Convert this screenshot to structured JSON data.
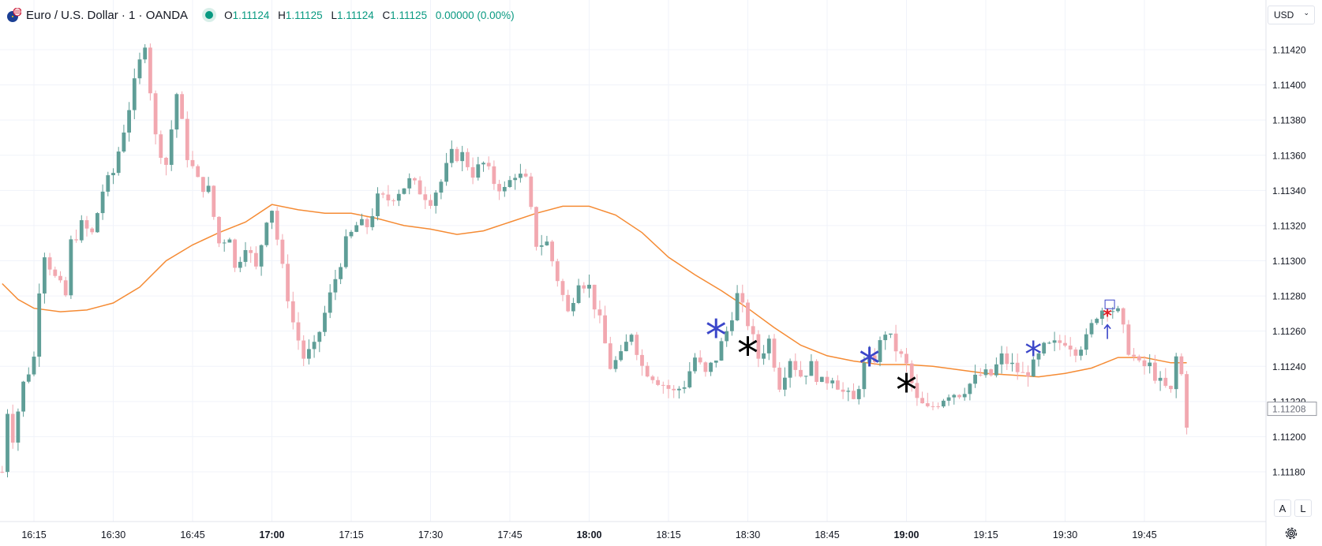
{
  "header": {
    "symbol_title": "Euro / U.S. Dollar · 1 · OANDA",
    "ohlc": [
      {
        "label": "O",
        "value": "1.11124"
      },
      {
        "label": "H",
        "value": "1.11125"
      },
      {
        "label": "L",
        "value": "1.11124"
      },
      {
        "label": "C",
        "value": "1.11125"
      }
    ],
    "change": "0.00000 (0.00%)",
    "market_status_color": "#089981"
  },
  "currency_selector": {
    "label": "USD"
  },
  "scale_buttons": {
    "auto": "A",
    "log": "L"
  },
  "icons": {
    "symbol_logo": "eur-usd-flag-icon",
    "settings": "gear-icon",
    "dropdown": "chevron-down-icon"
  },
  "colors": {
    "up": "#5f9e97",
    "down": "#f2a8b0",
    "ma": "#f58b34",
    "grid": "#f0f3fa",
    "marker_blue": "#3b46c9",
    "marker_black": "#000000",
    "marker_red": "#e01e25"
  },
  "chart_data": {
    "type": "candlestick",
    "ylim": [
      1.11165,
      1.1144
    ],
    "y_ticks": [
      "1.11420",
      "1.11400",
      "1.11380",
      "1.11360",
      "1.11340",
      "1.11320",
      "1.11300",
      "1.11280",
      "1.11260",
      "1.11240",
      "1.11220",
      "1.11200",
      "1.11180"
    ],
    "x_ticks": [
      {
        "label": "16:15",
        "bold": false
      },
      {
        "label": "16:30",
        "bold": false
      },
      {
        "label": "16:45",
        "bold": false
      },
      {
        "label": "17:00",
        "bold": true
      },
      {
        "label": "17:15",
        "bold": false
      },
      {
        "label": "17:30",
        "bold": false
      },
      {
        "label": "17:45",
        "bold": false
      },
      {
        "label": "18:00",
        "bold": true
      },
      {
        "label": "18:15",
        "bold": false
      },
      {
        "label": "18:30",
        "bold": false
      },
      {
        "label": "18:45",
        "bold": false
      },
      {
        "label": "19:00",
        "bold": true
      },
      {
        "label": "19:15",
        "bold": false
      },
      {
        "label": "19:30",
        "bold": false
      },
      {
        "label": "19:45",
        "bold": false
      }
    ],
    "last_price_label": "1.11208",
    "ma_series": [
      {
        "t": "16:09",
        "v": 1.11287
      },
      {
        "t": "16:12",
        "v": 1.11278
      },
      {
        "t": "16:15",
        "v": 1.11273
      },
      {
        "t": "16:20",
        "v": 1.11271
      },
      {
        "t": "16:25",
        "v": 1.11272
      },
      {
        "t": "16:30",
        "v": 1.11276
      },
      {
        "t": "16:35",
        "v": 1.11285
      },
      {
        "t": "16:40",
        "v": 1.113
      },
      {
        "t": "16:45",
        "v": 1.11309
      },
      {
        "t": "16:50",
        "v": 1.11316
      },
      {
        "t": "16:55",
        "v": 1.11322
      },
      {
        "t": "17:00",
        "v": 1.11332
      },
      {
        "t": "17:05",
        "v": 1.11329
      },
      {
        "t": "17:10",
        "v": 1.11327
      },
      {
        "t": "17:15",
        "v": 1.11327
      },
      {
        "t": "17:20",
        "v": 1.11324
      },
      {
        "t": "17:25",
        "v": 1.1132
      },
      {
        "t": "17:30",
        "v": 1.11318
      },
      {
        "t": "17:35",
        "v": 1.11315
      },
      {
        "t": "17:40",
        "v": 1.11317
      },
      {
        "t": "17:45",
        "v": 1.11322
      },
      {
        "t": "17:50",
        "v": 1.11327
      },
      {
        "t": "17:55",
        "v": 1.11331
      },
      {
        "t": "18:00",
        "v": 1.11331
      },
      {
        "t": "18:05",
        "v": 1.11326
      },
      {
        "t": "18:10",
        "v": 1.11316
      },
      {
        "t": "18:15",
        "v": 1.11302
      },
      {
        "t": "18:20",
        "v": 1.11292
      },
      {
        "t": "18:25",
        "v": 1.11283
      },
      {
        "t": "18:30",
        "v": 1.11273
      },
      {
        "t": "18:35",
        "v": 1.11262
      },
      {
        "t": "18:40",
        "v": 1.11252
      },
      {
        "t": "18:45",
        "v": 1.11246
      },
      {
        "t": "18:50",
        "v": 1.11243
      },
      {
        "t": "18:55",
        "v": 1.11241
      },
      {
        "t": "19:00",
        "v": 1.11241
      },
      {
        "t": "19:05",
        "v": 1.1124
      },
      {
        "t": "19:10",
        "v": 1.11238
      },
      {
        "t": "19:15",
        "v": 1.11236
      },
      {
        "t": "19:20",
        "v": 1.11235
      },
      {
        "t": "19:25",
        "v": 1.11234
      },
      {
        "t": "19:30",
        "v": 1.11236
      },
      {
        "t": "19:35",
        "v": 1.11239
      },
      {
        "t": "19:40",
        "v": 1.11245
      },
      {
        "t": "19:45",
        "v": 1.11245
      },
      {
        "t": "19:50",
        "v": 1.11242
      },
      {
        "t": "19:53",
        "v": 1.11242
      }
    ],
    "path_points": [
      {
        "t": "16:09",
        "v": 1.1118
      },
      {
        "t": "16:10",
        "v": 1.11215
      },
      {
        "t": "16:11",
        "v": 1.112
      },
      {
        "t": "16:13",
        "v": 1.1123
      },
      {
        "t": "16:15",
        "v": 1.11245
      },
      {
        "t": "16:16",
        "v": 1.11285
      },
      {
        "t": "16:17",
        "v": 1.11305
      },
      {
        "t": "16:19",
        "v": 1.1129
      },
      {
        "t": "16:21",
        "v": 1.1128
      },
      {
        "t": "16:22",
        "v": 1.1131
      },
      {
        "t": "16:24",
        "v": 1.1132
      },
      {
        "t": "16:26",
        "v": 1.11315
      },
      {
        "t": "16:28",
        "v": 1.1134
      },
      {
        "t": "16:30",
        "v": 1.1135
      },
      {
        "t": "16:32",
        "v": 1.11375
      },
      {
        "t": "16:34",
        "v": 1.114
      },
      {
        "t": "16:36",
        "v": 1.11425
      },
      {
        "t": "16:38",
        "v": 1.1137
      },
      {
        "t": "16:40",
        "v": 1.11355
      },
      {
        "t": "16:42",
        "v": 1.11395
      },
      {
        "t": "16:44",
        "v": 1.1136
      },
      {
        "t": "16:46",
        "v": 1.11345
      },
      {
        "t": "16:48",
        "v": 1.1134
      },
      {
        "t": "16:50",
        "v": 1.1131
      },
      {
        "t": "16:52",
        "v": 1.11315
      },
      {
        "t": "16:53",
        "v": 1.11295
      },
      {
        "t": "16:55",
        "v": 1.1131
      },
      {
        "t": "16:57",
        "v": 1.11295
      },
      {
        "t": "16:59",
        "v": 1.11325
      },
      {
        "t": "17:00",
        "v": 1.1133
      },
      {
        "t": "17:02",
        "v": 1.11295
      },
      {
        "t": "17:04",
        "v": 1.11265
      },
      {
        "t": "17:06",
        "v": 1.11245
      },
      {
        "t": "17:08",
        "v": 1.1125
      },
      {
        "t": "17:10",
        "v": 1.1127
      },
      {
        "t": "17:12",
        "v": 1.1129
      },
      {
        "t": "17:14",
        "v": 1.1131
      },
      {
        "t": "17:16",
        "v": 1.1132
      },
      {
        "t": "17:18",
        "v": 1.1132
      },
      {
        "t": "17:20",
        "v": 1.11335
      },
      {
        "t": "17:22",
        "v": 1.11335
      },
      {
        "t": "17:24",
        "v": 1.1134
      },
      {
        "t": "17:26",
        "v": 1.11345
      },
      {
        "t": "17:28",
        "v": 1.1134
      },
      {
        "t": "17:30",
        "v": 1.11335
      },
      {
        "t": "17:32",
        "v": 1.11345
      },
      {
        "t": "17:34",
        "v": 1.1136
      },
      {
        "t": "17:36",
        "v": 1.1136
      },
      {
        "t": "17:38",
        "v": 1.1135
      },
      {
        "t": "17:40",
        "v": 1.11355
      },
      {
        "t": "17:42",
        "v": 1.11345
      },
      {
        "t": "17:44",
        "v": 1.1134
      },
      {
        "t": "17:46",
        "v": 1.1135
      },
      {
        "t": "17:48",
        "v": 1.11345
      },
      {
        "t": "17:50",
        "v": 1.1131
      },
      {
        "t": "17:52",
        "v": 1.1131
      },
      {
        "t": "17:54",
        "v": 1.1129
      },
      {
        "t": "17:56",
        "v": 1.1127
      },
      {
        "t": "17:58",
        "v": 1.1129
      },
      {
        "t": "18:00",
        "v": 1.11285
      },
      {
        "t": "18:02",
        "v": 1.11265
      },
      {
        "t": "18:04",
        "v": 1.1124
      },
      {
        "t": "18:06",
        "v": 1.11245
      },
      {
        "t": "18:08",
        "v": 1.1126
      },
      {
        "t": "18:10",
        "v": 1.1124
      },
      {
        "t": "18:12",
        "v": 1.11235
      },
      {
        "t": "18:14",
        "v": 1.1123
      },
      {
        "t": "18:16",
        "v": 1.11225
      },
      {
        "t": "18:18",
        "v": 1.1123
      },
      {
        "t": "18:20",
        "v": 1.11245
      },
      {
        "t": "18:22",
        "v": 1.11235
      },
      {
        "t": "18:24",
        "v": 1.11245
      },
      {
        "t": "18:26",
        "v": 1.1126
      },
      {
        "t": "18:28",
        "v": 1.1128
      },
      {
        "t": "18:30",
        "v": 1.11265
      },
      {
        "t": "18:32",
        "v": 1.11245
      },
      {
        "t": "18:34",
        "v": 1.11255
      },
      {
        "t": "18:36",
        "v": 1.1123
      },
      {
        "t": "18:38",
        "v": 1.11245
      },
      {
        "t": "18:40",
        "v": 1.11235
      },
      {
        "t": "18:42",
        "v": 1.1124
      },
      {
        "t": "18:44",
        "v": 1.1123
      },
      {
        "t": "18:46",
        "v": 1.11235
      },
      {
        "t": "18:48",
        "v": 1.11225
      },
      {
        "t": "18:50",
        "v": 1.1122
      },
      {
        "t": "18:52",
        "v": 1.1124
      },
      {
        "t": "18:54",
        "v": 1.11245
      },
      {
        "t": "18:56",
        "v": 1.1126
      },
      {
        "t": "18:58",
        "v": 1.1125
      },
      {
        "t": "19:00",
        "v": 1.1124
      },
      {
        "t": "19:02",
        "v": 1.1122
      },
      {
        "t": "19:04",
        "v": 1.11215
      },
      {
        "t": "19:06",
        "v": 1.1122
      },
      {
        "t": "19:08",
        "v": 1.11225
      },
      {
        "t": "19:10",
        "v": 1.11225
      },
      {
        "t": "19:12",
        "v": 1.1123
      },
      {
        "t": "19:14",
        "v": 1.11235
      },
      {
        "t": "19:16",
        "v": 1.11235
      },
      {
        "t": "19:18",
        "v": 1.11245
      },
      {
        "t": "19:20",
        "v": 1.1124
      },
      {
        "t": "19:22",
        "v": 1.11235
      },
      {
        "t": "19:24",
        "v": 1.1124
      },
      {
        "t": "19:26",
        "v": 1.1125
      },
      {
        "t": "19:28",
        "v": 1.11252
      },
      {
        "t": "19:30",
        "v": 1.11255
      },
      {
        "t": "19:32",
        "v": 1.1125
      },
      {
        "t": "19:34",
        "v": 1.11255
      },
      {
        "t": "19:36",
        "v": 1.1127
      },
      {
        "t": "19:38",
        "v": 1.11275
      },
      {
        "t": "19:40",
        "v": 1.1127
      },
      {
        "t": "19:42",
        "v": 1.1125
      },
      {
        "t": "19:44",
        "v": 1.1124
      },
      {
        "t": "19:46",
        "v": 1.1124
      },
      {
        "t": "19:48",
        "v": 1.1123
      },
      {
        "t": "19:50",
        "v": 1.11225
      },
      {
        "t": "19:51",
        "v": 1.11245
      },
      {
        "t": "19:52",
        "v": 1.11235
      },
      {
        "t": "19:53",
        "v": 1.11208
      }
    ],
    "markers": [
      {
        "t": "18:24",
        "v": 1.11258,
        "kind": "asterisk",
        "color": "#3b46c9"
      },
      {
        "t": "18:30",
        "v": 1.11248,
        "kind": "asterisk",
        "color": "#000000"
      },
      {
        "t": "18:53",
        "v": 1.11242,
        "kind": "asterisk",
        "color": "#3b46c9"
      },
      {
        "t": "19:00",
        "v": 1.11227,
        "kind": "asterisk",
        "color": "#000000"
      },
      {
        "t": "19:24",
        "v": 1.11249,
        "kind": "asterisk-small",
        "color": "#3b46c9"
      },
      {
        "t": "19:38",
        "v": 1.11269,
        "kind": "cross",
        "color": "#e01e25"
      },
      {
        "t": "19:38",
        "v": 1.11275,
        "kind": "box",
        "color": "#3b46c9"
      },
      {
        "t": "19:38",
        "v": 1.1126,
        "kind": "arrow-up",
        "color": "#3b46c9"
      }
    ]
  }
}
